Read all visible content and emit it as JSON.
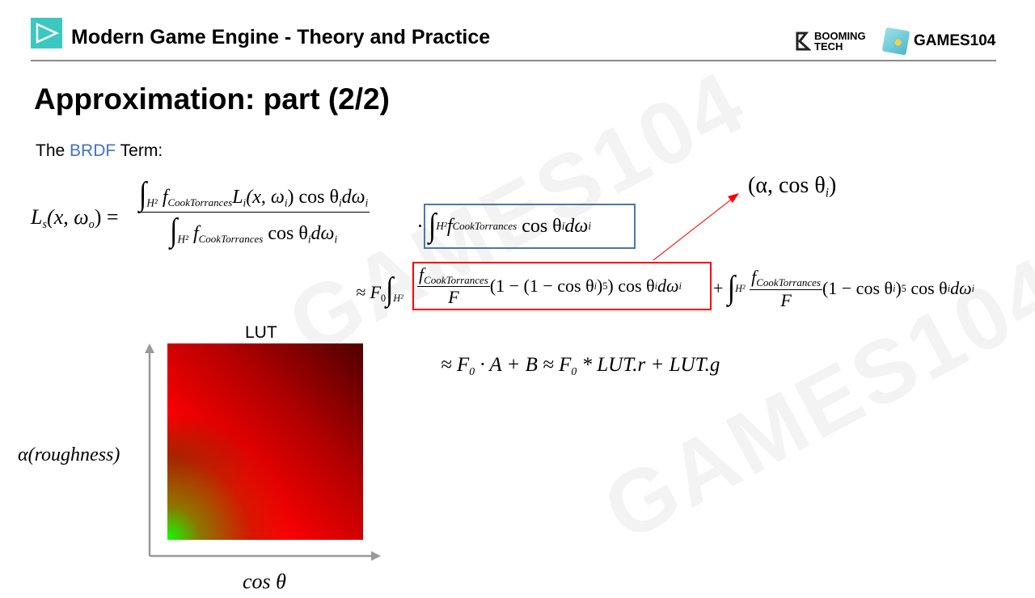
{
  "header": {
    "course_title": "Modern Game Engine - Theory and Practice",
    "logo_booming": "BOOMING TECH",
    "logo_games": "GAMES104"
  },
  "slide": {
    "title": "Approximation: part (2/2)",
    "intro_prefix": "The ",
    "intro_highlight": "BRDF",
    "intro_suffix": " Term:",
    "accent_color": "#4472c4"
  },
  "formula": {
    "lhs": "L",
    "lhs_sub": "s",
    "lhs_args": "(x, ω",
    "lhs_args_sub": "o",
    "eq": ") =",
    "int_domain": "H²",
    "f_sub": "CookTorrances",
    "num_rest": "L",
    "num_rest_sub": "i",
    "num_args": "(x, ω",
    "num_tail": ") cos θ",
    "d_omega": "dω",
    "i": "i",
    "approx": "≈ F",
    "zero": "0",
    "F": "F",
    "one_minus_inner": "(1 − (1 − cos θ",
    "pow5": "5",
    "plus": "+",
    "one_minus": "(1 − cos θ",
    "close": ")",
    "close_big": ")",
    "cos": "cos θ",
    "f": "f",
    "arrow_label": "(α, cos θ",
    "arrow_label_close": ")",
    "blue_box_color": "#4a76b0",
    "red_box_color": "#ff0000"
  },
  "lut": {
    "label": "LUT",
    "y_axis_label": "α(roughness)",
    "x_axis_label": "cos θ",
    "result_1": "≈ F",
    "result_2": "· A + B  ≈ F",
    "result_3": "* LUT.r  +  LUT.g"
  },
  "watermark": "GAMES104"
}
